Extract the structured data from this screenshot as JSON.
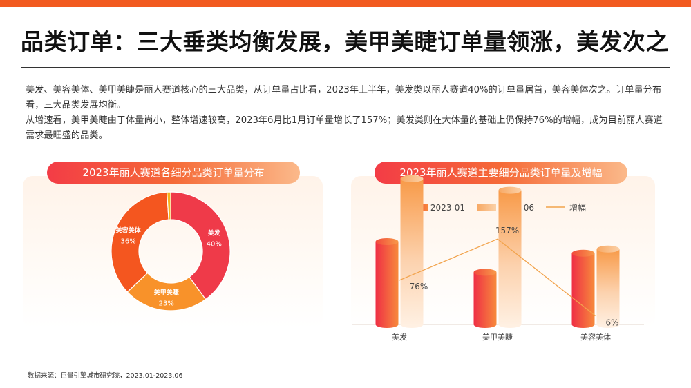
{
  "title": "品类订单：三大垂类均衡发展，美甲美睫订单量领涨，美发次之",
  "paragraph1": "美发、美容美体、美甲美睫是丽人赛道核心的三大品类，从订单量占比看，2023年上半年，美发类以丽人赛道40%的订单量居首，美容美体次之。订单量分布看，三大品类发展均衡。",
  "paragraph2": "从增速看，美甲美睫由于体量尚小，整体增速较高，2023年6月比1月订单量增长了157%；美发类则在大体量的基础上仍保持76%的增幅，成为目前丽人赛道需求最旺盛的品类。",
  "source": "数据来源：巨量引擎城市研究院，2023.01-2023.06",
  "colors": {
    "accent": "#f25a1f",
    "red": "#f03a47",
    "orange": "#f47a22",
    "light_orange": "#fbbf8a",
    "line": "#f2a34c"
  },
  "chart_data": [
    {
      "type": "pie",
      "variant": "donut",
      "title": "2023年丽人赛道各细分品类订单量分布",
      "slices": [
        {
          "label": "美发",
          "value": 40,
          "value_label": "40%",
          "color": "#ef3a49"
        },
        {
          "label": "美甲美睫",
          "value": 23,
          "value_label": "23%",
          "color": "#f8922a"
        },
        {
          "label": "美容美体",
          "value": 36,
          "value_label": "36%",
          "color": "#f4561f"
        },
        {
          "label": "",
          "value": 1,
          "value_label": "",
          "color": "#f7b21c"
        }
      ]
    },
    {
      "type": "bar",
      "title": "2023年丽人赛道主要细分品类订单量及增幅",
      "categories": [
        "美发",
        "美甲美睫",
        "美容美体"
      ],
      "series": [
        {
          "name": "2023-01",
          "kind": "bar",
          "values": [
            1.0,
            0.63,
            0.86
          ],
          "color": "#f03a47"
        },
        {
          "name": "2023-06",
          "kind": "bar",
          "values": [
            1.76,
            1.62,
            0.91
          ],
          "color": "#fbbf8a"
        },
        {
          "name": "增幅",
          "kind": "line",
          "values": [
            76,
            157,
            6
          ],
          "labels": [
            "76%",
            "157%",
            "6%"
          ],
          "color": "#f2a34c"
        }
      ],
      "legend": "top",
      "grid": false
    }
  ]
}
